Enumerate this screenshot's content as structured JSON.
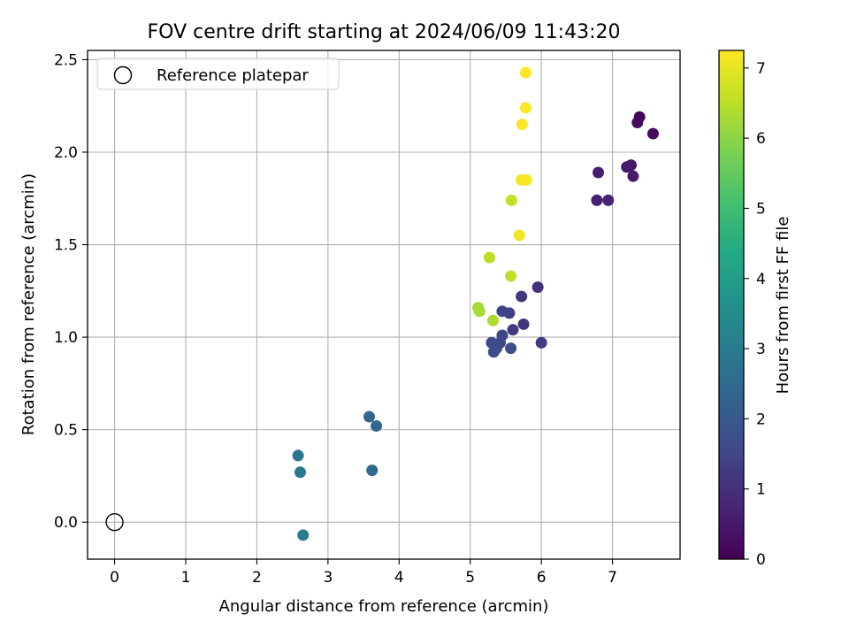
{
  "chart_data": {
    "type": "scatter",
    "title": "FOV centre drift starting at 2024/06/09 11:43:20",
    "xlabel": "Angular distance from reference (arcmin)",
    "ylabel": "Rotation from reference (arcmin)",
    "xlim": [
      -0.38,
      7.95
    ],
    "ylim": [
      -0.2,
      2.55
    ],
    "xticks": [
      0,
      1,
      2,
      3,
      4,
      5,
      6,
      7
    ],
    "yticks": [
      0.0,
      0.5,
      1.0,
      1.5,
      2.0,
      2.5
    ],
    "xtick_labels": [
      "0",
      "1",
      "2",
      "3",
      "4",
      "5",
      "6",
      "7"
    ],
    "ytick_labels": [
      "0.0",
      "0.5",
      "1.0",
      "1.5",
      "2.0",
      "2.5"
    ],
    "grid": true,
    "legend": {
      "position": "top-left",
      "entries": [
        "Reference platepar"
      ]
    },
    "reference_point": {
      "x": 0.0,
      "y": 0.0,
      "label": "Reference platepar"
    },
    "colorbar": {
      "label": "Hours from first FF file",
      "colormap": "viridis",
      "range": [
        0,
        7.25
      ],
      "ticks": [
        0,
        1,
        2,
        3,
        4,
        5,
        6,
        7
      ],
      "tick_labels": [
        "0",
        "1",
        "2",
        "3",
        "4",
        "5",
        "6",
        "7"
      ]
    },
    "points": [
      {
        "x": 7.38,
        "y": 2.19,
        "h": 0.1
      },
      {
        "x": 7.35,
        "y": 2.16,
        "h": 0.15
      },
      {
        "x": 7.57,
        "y": 2.1,
        "h": 0.2
      },
      {
        "x": 7.26,
        "y": 1.93,
        "h": 0.45
      },
      {
        "x": 7.2,
        "y": 1.92,
        "h": 0.5
      },
      {
        "x": 7.29,
        "y": 1.87,
        "h": 0.55
      },
      {
        "x": 6.8,
        "y": 1.89,
        "h": 0.6
      },
      {
        "x": 6.78,
        "y": 1.74,
        "h": 0.65
      },
      {
        "x": 6.94,
        "y": 1.74,
        "h": 0.7
      },
      {
        "x": 5.95,
        "y": 1.27,
        "h": 1.0
      },
      {
        "x": 5.72,
        "y": 1.22,
        "h": 1.1
      },
      {
        "x": 5.75,
        "y": 1.07,
        "h": 1.15
      },
      {
        "x": 5.6,
        "y": 1.04,
        "h": 1.2
      },
      {
        "x": 6.0,
        "y": 0.97,
        "h": 1.3
      },
      {
        "x": 5.55,
        "y": 1.13,
        "h": 1.35
      },
      {
        "x": 5.45,
        "y": 1.14,
        "h": 1.4
      },
      {
        "x": 5.45,
        "y": 1.01,
        "h": 1.5
      },
      {
        "x": 5.42,
        "y": 0.97,
        "h": 1.55
      },
      {
        "x": 5.3,
        "y": 0.97,
        "h": 1.6
      },
      {
        "x": 5.37,
        "y": 0.94,
        "h": 1.65
      },
      {
        "x": 5.33,
        "y": 0.92,
        "h": 1.7
      },
      {
        "x": 5.57,
        "y": 0.94,
        "h": 1.75
      },
      {
        "x": 3.58,
        "y": 0.57,
        "h": 2.35
      },
      {
        "x": 3.68,
        "y": 0.52,
        "h": 2.4
      },
      {
        "x": 3.62,
        "y": 0.28,
        "h": 2.5
      },
      {
        "x": 2.58,
        "y": 0.36,
        "h": 2.85
      },
      {
        "x": 2.61,
        "y": 0.27,
        "h": 2.9
      },
      {
        "x": 2.65,
        "y": -0.07,
        "h": 3.0
      },
      {
        "x": 5.11,
        "y": 1.16,
        "h": 6.25
      },
      {
        "x": 5.13,
        "y": 1.14,
        "h": 6.3
      },
      {
        "x": 5.32,
        "y": 1.09,
        "h": 6.35
      },
      {
        "x": 5.27,
        "y": 1.43,
        "h": 6.5
      },
      {
        "x": 5.57,
        "y": 1.33,
        "h": 6.55
      },
      {
        "x": 5.58,
        "y": 1.74,
        "h": 6.6
      },
      {
        "x": 5.69,
        "y": 1.55,
        "h": 7.1
      },
      {
        "x": 5.72,
        "y": 1.85,
        "h": 7.15
      },
      {
        "x": 5.79,
        "y": 1.85,
        "h": 7.2
      },
      {
        "x": 5.73,
        "y": 2.15,
        "h": 7.2
      },
      {
        "x": 5.78,
        "y": 2.24,
        "h": 7.22
      },
      {
        "x": 5.78,
        "y": 2.43,
        "h": 7.25
      }
    ]
  }
}
